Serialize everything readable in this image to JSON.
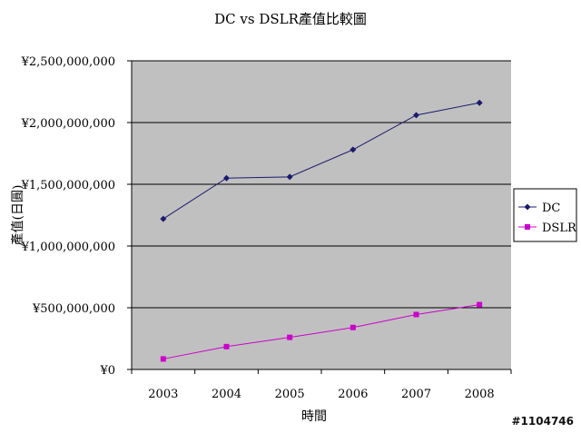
{
  "chart_data": {
    "type": "line",
    "title": "DC vs DSLR產值比較圖",
    "xlabel": "時間",
    "ylabel": "產值(日圓)",
    "categories": [
      "2003",
      "2004",
      "2005",
      "2006",
      "2007",
      "2008"
    ],
    "series": [
      {
        "name": "DC",
        "color": "#1a1a6e",
        "marker": "diamond",
        "values": [
          1220000000,
          1550000000,
          1560000000,
          1780000000,
          2060000000,
          2160000000
        ]
      },
      {
        "name": "DSLR",
        "color": "#cc00cc",
        "marker": "square",
        "values": [
          85000000,
          185000000,
          260000000,
          340000000,
          445000000,
          525000000
        ]
      }
    ],
    "ylim": [
      0,
      2500000000
    ],
    "yticks": [
      {
        "value": 0,
        "label": "¥0"
      },
      {
        "value": 500000000,
        "label": "¥500,000,000"
      },
      {
        "value": 1000000000,
        "label": "¥1,000,000,000"
      },
      {
        "value": 1500000000,
        "label": "¥1,500,000,000"
      },
      {
        "value": 2000000000,
        "label": "¥2,000,000,000"
      },
      {
        "value": 2500000000,
        "label": "¥2,500,000,000"
      }
    ],
    "grid": true,
    "plot_background": "#c0c0c0",
    "legend": "right"
  },
  "watermark": "#1104746"
}
